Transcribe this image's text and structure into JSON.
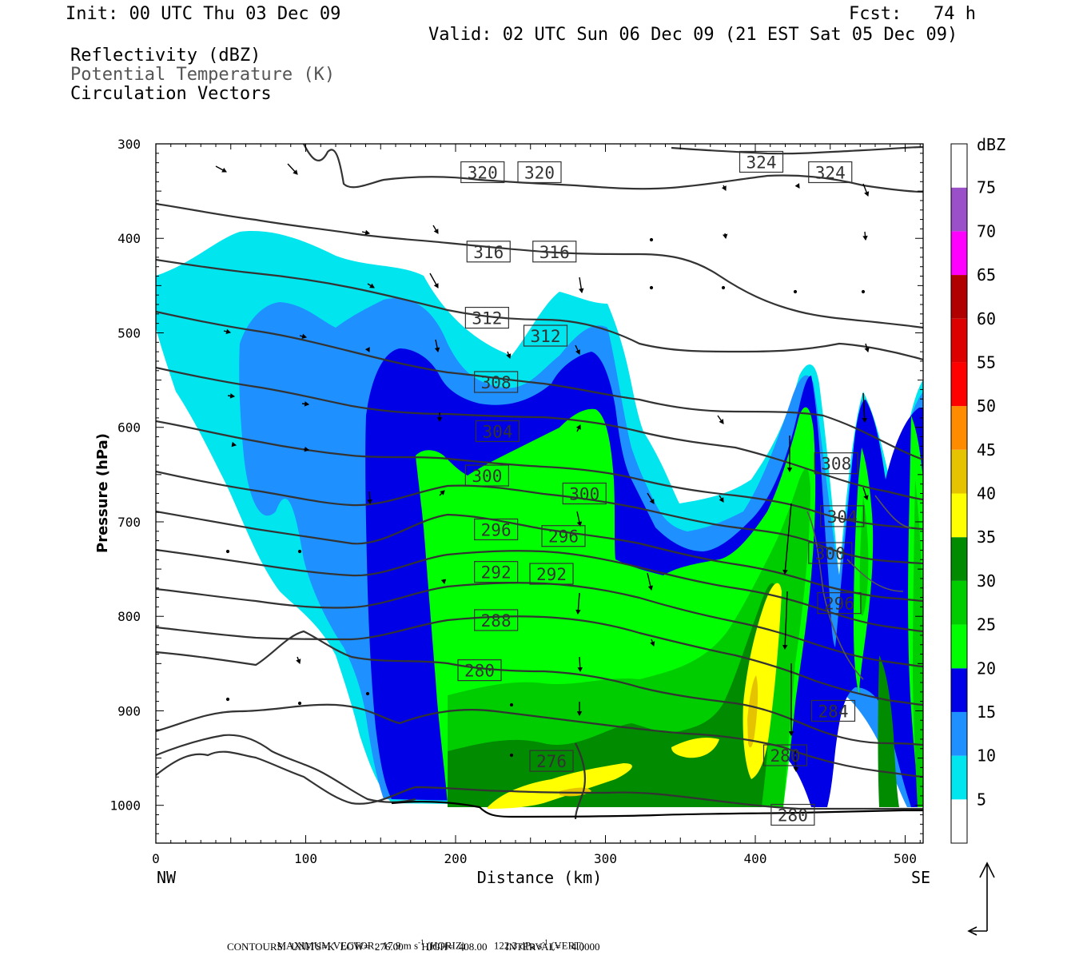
{
  "header": {
    "init": "Init: 00 UTC Thu 03 Dec 09",
    "fcst": "Fcst:   74 h",
    "valid": "Valid: 02 UTC Sun 06 Dec 09 (21 EST Sat 05 Dec 09)",
    "fields": [
      {
        "text": "Reflectivity (dBZ)",
        "color": "#000000"
      },
      {
        "text": "Potential Temperature (K)",
        "color": "#555555"
      },
      {
        "text": "Circulation Vectors",
        "color": "#000000"
      }
    ]
  },
  "chart_data": {
    "type": "cross-section",
    "xlabel": "Distance (km)",
    "ylabel": "Pressure (hPa)",
    "xlim": [
      0,
      512
    ],
    "ylim": [
      300,
      1040
    ],
    "y_inverted": true,
    "x_ticks": [
      "0",
      "100",
      "200",
      "300",
      "400",
      "500"
    ],
    "y_ticks": [
      "300",
      "400",
      "500",
      "600",
      "700",
      "800",
      "900",
      "1000"
    ],
    "x_end_labels": {
      "left": "NW",
      "right": "SE"
    },
    "colorbar": {
      "unit": "dBZ",
      "levels": [
        "5",
        "10",
        "15",
        "20",
        "25",
        "30",
        "35",
        "40",
        "45",
        "50",
        "55",
        "60",
        "65",
        "70",
        "75"
      ],
      "colors": [
        "#ffffff",
        "#00e5ee",
        "#1e90ff",
        "#0000e6",
        "#00ff00",
        "#00cd00",
        "#008b00",
        "#ffff00",
        "#e6c300",
        "#ff8c00",
        "#ff0000",
        "#dd0000",
        "#b00000",
        "#ff00ff",
        "#9a50c8",
        "#ffffff"
      ]
    },
    "theta_contours": {
      "units": "K",
      "low": 276,
      "high": 408,
      "interval": 4,
      "labels": [
        {
          "t": "320",
          "x": 218,
          "p": 330
        },
        {
          "t": "320",
          "x": 256,
          "p": 330
        },
        {
          "t": "324",
          "x": 404,
          "p": 319
        },
        {
          "t": "324",
          "x": 450,
          "p": 330
        },
        {
          "t": "316",
          "x": 222,
          "p": 414
        },
        {
          "t": "316",
          "x": 266,
          "p": 414
        },
        {
          "t": "312",
          "x": 221,
          "p": 484
        },
        {
          "t": "312",
          "x": 260,
          "p": 503
        },
        {
          "t": "308",
          "x": 227,
          "p": 552
        },
        {
          "t": "308",
          "x": 454,
          "p": 638
        },
        {
          "t": "304",
          "x": 228,
          "p": 604
        },
        {
          "t": "304",
          "x": 458,
          "p": 694
        },
        {
          "t": "300",
          "x": 221,
          "p": 651
        },
        {
          "t": "300",
          "x": 286,
          "p": 670
        },
        {
          "t": "300",
          "x": 450,
          "p": 733
        },
        {
          "t": "296",
          "x": 227,
          "p": 708
        },
        {
          "t": "296",
          "x": 272,
          "p": 715
        },
        {
          "t": "296",
          "x": 456,
          "p": 786
        },
        {
          "t": "292",
          "x": 227,
          "p": 753
        },
        {
          "t": "292",
          "x": 264,
          "p": 755
        },
        {
          "t": "288",
          "x": 227,
          "p": 804
        },
        {
          "t": "280",
          "x": 216,
          "p": 857
        },
        {
          "t": "284",
          "x": 452,
          "p": 900
        },
        {
          "t": "280",
          "x": 420,
          "p": 947
        },
        {
          "t": "276",
          "x": 264,
          "p": 953
        },
        {
          "t": "280",
          "x": 425,
          "p": 1010
        }
      ]
    }
  },
  "footer": {
    "maxvec_label": "MAXIMUM VECTOR:",
    "horiz_value": "17.9 m s",
    "horiz_unit_tail": "(HORIZ)",
    "vert_value": "122.3 dPa s",
    "vert_unit_tail": "(VERT)",
    "exponent": "-1",
    "contours_line": "CONTOURS:  UNITS=K  LOW=  276.00       HIGH=  408.00       INTERVAL=    4.0000"
  }
}
